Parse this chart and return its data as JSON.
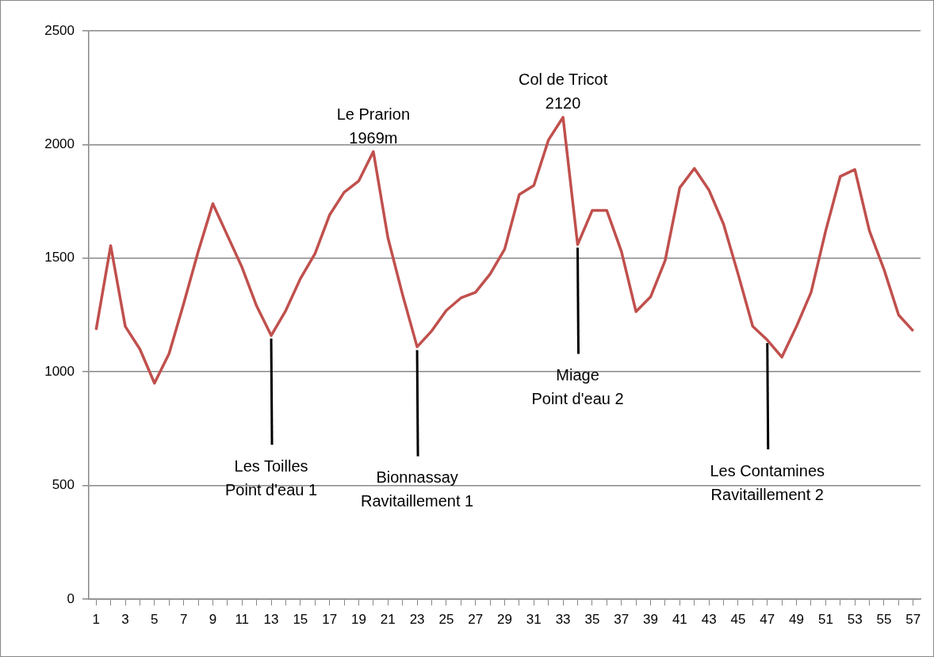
{
  "chart_data": {
    "type": "line",
    "x": [
      1,
      2,
      3,
      4,
      5,
      6,
      7,
      8,
      9,
      10,
      11,
      12,
      13,
      14,
      15,
      16,
      17,
      18,
      19,
      20,
      21,
      22,
      23,
      24,
      25,
      26,
      27,
      28,
      29,
      30,
      31,
      32,
      33,
      34,
      35,
      36,
      37,
      38,
      39,
      40,
      41,
      42,
      43,
      44,
      45,
      46,
      47,
      48,
      49,
      50,
      51,
      52,
      53,
      54,
      55,
      56,
      57
    ],
    "series": [
      {
        "color": "#c0504d",
        "values": [
          1185,
          1555,
          1200,
          1100,
          950,
          1080,
          1300,
          1530,
          1740,
          1600,
          1460,
          1290,
          1160,
          1270,
          1410,
          1520,
          1690,
          1790,
          1840,
          1969,
          1590,
          1340,
          1110,
          1180,
          1270,
          1325,
          1350,
          1430,
          1540,
          1780,
          1820,
          2020,
          2120,
          1560,
          1710,
          1710,
          1530,
          1265,
          1330,
          1490,
          1810,
          1895,
          1800,
          1650,
          1430,
          1200,
          1140,
          1065,
          1200,
          1350,
          1620,
          1860,
          1890,
          1620,
          1450,
          1250,
          1180
        ]
      }
    ],
    "xlim": [
      0.5,
      57.5
    ],
    "xticks": [
      1,
      {
        "value": 2,
        "label": null
      },
      3,
      {
        "value": 4,
        "label": null
      },
      5,
      {
        "value": 6,
        "label": null
      },
      7,
      {
        "value": 8,
        "label": null
      },
      9,
      {
        "value": 10,
        "label": null
      },
      11,
      {
        "value": 12,
        "label": null
      },
      13,
      {
        "value": 14,
        "label": null
      },
      15,
      {
        "value": 16,
        "label": null
      },
      17,
      {
        "value": 18,
        "label": null
      },
      19,
      {
        "value": 20,
        "label": null
      },
      21,
      {
        "value": 22,
        "label": null
      },
      23,
      {
        "value": 24,
        "label": null
      },
      25,
      {
        "value": 26,
        "label": null
      },
      27,
      {
        "value": 28,
        "label": null
      },
      29,
      {
        "value": 30,
        "label": null
      },
      31,
      {
        "value": 32,
        "label": null
      },
      33,
      {
        "value": 34,
        "label": null
      },
      35,
      {
        "value": 36,
        "label": null
      },
      37,
      {
        "value": 38,
        "label": null
      },
      39,
      {
        "value": 40,
        "label": null
      },
      41,
      {
        "value": 42,
        "label": null
      },
      43,
      {
        "value": 44,
        "label": null
      },
      45,
      {
        "value": 46,
        "label": null
      },
      47,
      {
        "value": 48,
        "label": null
      },
      49,
      {
        "value": 50,
        "label": null
      },
      51,
      {
        "value": 52,
        "label": null
      },
      53,
      {
        "value": 54,
        "label": null
      },
      55,
      {
        "value": 56,
        "label": null
      },
      57
    ],
    "ylim": [
      0,
      2500
    ],
    "yticks": [
      0,
      500,
      1000,
      1500,
      2000,
      2500
    ],
    "grid": "y",
    "legend": false,
    "marker": "none",
    "line_style": "solid",
    "annotations": [
      {
        "text": "Le Prarion\n1969m",
        "x": 20,
        "y": 1969
      },
      {
        "text": "Col de Tricot\n2120",
        "x": 33,
        "y": 2120
      },
      {
        "text": "Les Toilles\nPoint d'eau 1",
        "x": 13,
        "y": 1160
      },
      {
        "text": "Bionnassay\nRavitaillement 1",
        "x": 23,
        "y": 1110
      },
      {
        "text": "Miage\nPoint d'eau 2",
        "x": 34,
        "y": 1560
      },
      {
        "text": "Les Contamines\nRavitaillement 2",
        "x": 47,
        "y": 1140
      }
    ]
  }
}
